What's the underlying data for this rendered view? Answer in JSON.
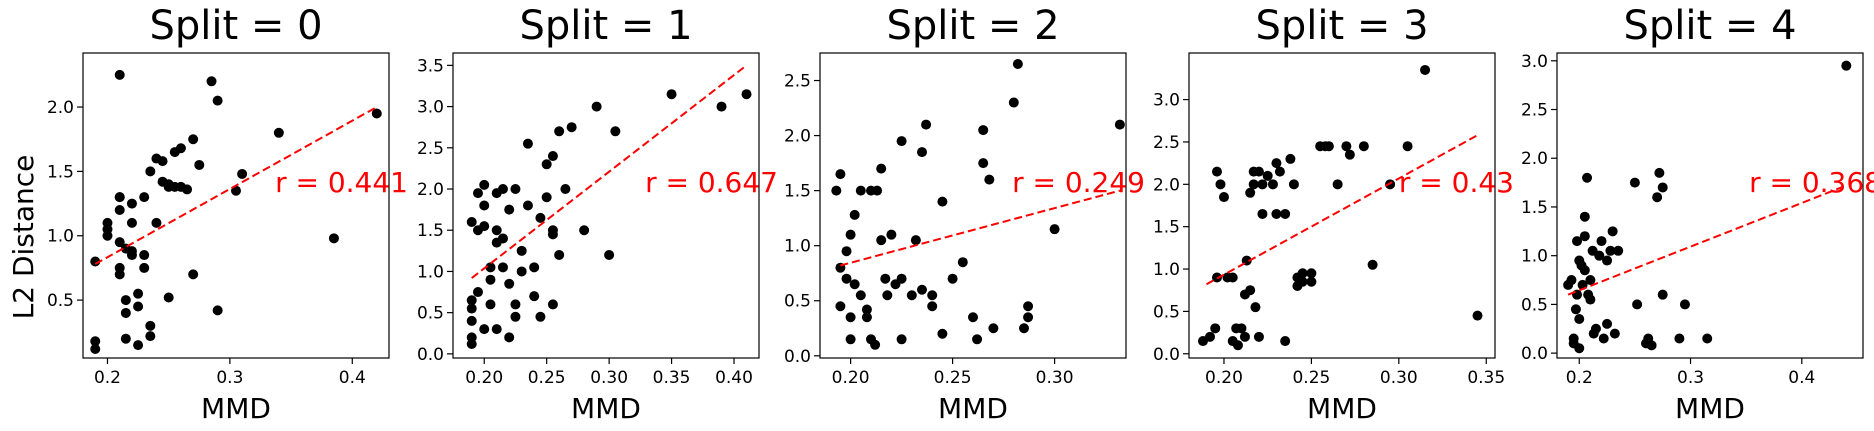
{
  "figure": {
    "ylabel": "L2 Distance",
    "xlabel": "MMD",
    "series_color": "#000000",
    "fit_color": "#ff0000"
  },
  "chart_data": [
    {
      "type": "scatter",
      "title": "Split = 0",
      "xlabel": "MMD",
      "ylabel": "L2 Distance",
      "annotation": "r = 0.441",
      "xlim": [
        0.18,
        0.43
      ],
      "ylim": [
        0.05,
        2.42
      ],
      "xticks": [
        0.2,
        0.3,
        0.4
      ],
      "xtick_labels": [
        "0.2",
        "0.3",
        "0.4"
      ],
      "yticks": [
        0.5,
        1.0,
        1.5,
        2.0
      ],
      "ytick_labels": [
        "0.5",
        "1.0",
        "1.5",
        "2.0"
      ],
      "fit": [
        [
          0.19,
          0.78
        ],
        [
          0.42,
          2.0
        ]
      ],
      "points": [
        [
          0.19,
          0.18
        ],
        [
          0.19,
          0.12
        ],
        [
          0.19,
          0.8
        ],
        [
          0.2,
          1.05
        ],
        [
          0.2,
          1.0
        ],
        [
          0.2,
          1.1
        ],
        [
          0.21,
          1.3
        ],
        [
          0.21,
          0.7
        ],
        [
          0.21,
          0.75
        ],
        [
          0.21,
          0.95
        ],
        [
          0.21,
          2.25
        ],
        [
          0.21,
          1.3
        ],
        [
          0.21,
          1.2
        ],
        [
          0.215,
          0.5
        ],
        [
          0.215,
          0.4
        ],
        [
          0.215,
          0.9
        ],
        [
          0.215,
          0.2
        ],
        [
          0.22,
          0.85
        ],
        [
          0.22,
          1.25
        ],
        [
          0.22,
          1.1
        ],
        [
          0.22,
          0.88
        ],
        [
          0.225,
          0.45
        ],
        [
          0.225,
          0.15
        ],
        [
          0.225,
          0.55
        ],
        [
          0.23,
          0.75
        ],
        [
          0.23,
          1.3
        ],
        [
          0.23,
          0.85
        ],
        [
          0.235,
          0.3
        ],
        [
          0.235,
          0.22
        ],
        [
          0.235,
          1.5
        ],
        [
          0.24,
          1.1
        ],
        [
          0.24,
          1.6
        ],
        [
          0.245,
          1.42
        ],
        [
          0.245,
          1.58
        ],
        [
          0.25,
          0.52
        ],
        [
          0.25,
          1.38
        ],
        [
          0.25,
          1.4
        ],
        [
          0.255,
          1.38
        ],
        [
          0.255,
          1.65
        ],
        [
          0.26,
          1.68
        ],
        [
          0.26,
          1.38
        ],
        [
          0.265,
          1.36
        ],
        [
          0.27,
          0.7
        ],
        [
          0.27,
          1.75
        ],
        [
          0.275,
          1.55
        ],
        [
          0.285,
          2.2
        ],
        [
          0.29,
          2.05
        ],
        [
          0.29,
          0.42
        ],
        [
          0.305,
          1.35
        ],
        [
          0.31,
          1.48
        ],
        [
          0.34,
          1.8
        ],
        [
          0.385,
          0.98
        ],
        [
          0.42,
          1.95
        ]
      ]
    },
    {
      "type": "scatter",
      "title": "Split = 1",
      "xlabel": "MMD",
      "annotation": "r = 0.647",
      "xlim": [
        0.175,
        0.42
      ],
      "ylim": [
        -0.05,
        3.65
      ],
      "xticks": [
        0.2,
        0.25,
        0.3,
        0.35,
        0.4
      ],
      "xtick_labels": [
        "0.20",
        "0.25",
        "0.30",
        "0.35",
        "0.40"
      ],
      "yticks": [
        0.0,
        0.5,
        1.0,
        1.5,
        2.0,
        2.5,
        3.0,
        3.5
      ],
      "ytick_labels": [
        "0.0",
        "0.5",
        "1.0",
        "1.5",
        "2.0",
        "2.5",
        "3.0",
        "3.5"
      ],
      "fit": [
        [
          0.19,
          0.92
        ],
        [
          0.41,
          3.5
        ]
      ],
      "points": [
        [
          0.19,
          0.12
        ],
        [
          0.19,
          0.2
        ],
        [
          0.19,
          0.4
        ],
        [
          0.19,
          0.55
        ],
        [
          0.19,
          0.65
        ],
        [
          0.19,
          1.6
        ],
        [
          0.195,
          1.95
        ],
        [
          0.195,
          1.5
        ],
        [
          0.195,
          0.75
        ],
        [
          0.2,
          2.05
        ],
        [
          0.2,
          1.8
        ],
        [
          0.2,
          1.55
        ],
        [
          0.2,
          0.3
        ],
        [
          0.205,
          1.05
        ],
        [
          0.205,
          0.9
        ],
        [
          0.205,
          0.6
        ],
        [
          0.21,
          1.95
        ],
        [
          0.21,
          1.5
        ],
        [
          0.21,
          1.35
        ],
        [
          0.21,
          0.3
        ],
        [
          0.215,
          1.05
        ],
        [
          0.215,
          1.4
        ],
        [
          0.215,
          2.0
        ],
        [
          0.22,
          1.75
        ],
        [
          0.22,
          0.85
        ],
        [
          0.22,
          0.2
        ],
        [
          0.225,
          2.0
        ],
        [
          0.225,
          0.6
        ],
        [
          0.225,
          0.45
        ],
        [
          0.23,
          1.25
        ],
        [
          0.23,
          1.0
        ],
        [
          0.235,
          2.55
        ],
        [
          0.235,
          1.8
        ],
        [
          0.24,
          1.05
        ],
        [
          0.24,
          0.7
        ],
        [
          0.245,
          1.65
        ],
        [
          0.245,
          0.45
        ],
        [
          0.25,
          2.3
        ],
        [
          0.25,
          1.9
        ],
        [
          0.255,
          1.45
        ],
        [
          0.255,
          1.5
        ],
        [
          0.255,
          0.6
        ],
        [
          0.255,
          2.4
        ],
        [
          0.26,
          2.7
        ],
        [
          0.26,
          1.2
        ],
        [
          0.265,
          2.0
        ],
        [
          0.27,
          2.75
        ],
        [
          0.28,
          1.5
        ],
        [
          0.29,
          3.0
        ],
        [
          0.3,
          1.2
        ],
        [
          0.305,
          2.7
        ],
        [
          0.35,
          3.15
        ],
        [
          0.39,
          3.0
        ],
        [
          0.41,
          3.15
        ]
      ]
    },
    {
      "type": "scatter",
      "title": "Split = 2",
      "xlabel": "MMD",
      "annotation": "r = 0.249",
      "xlim": [
        0.185,
        0.335
      ],
      "ylim": [
        -0.02,
        2.75
      ],
      "xticks": [
        0.2,
        0.25,
        0.3
      ],
      "xtick_labels": [
        "0.20",
        "0.25",
        "0.30"
      ],
      "yticks": [
        0.0,
        0.5,
        1.0,
        1.5,
        2.0,
        2.5
      ],
      "ytick_labels": [
        "0.0",
        "0.5",
        "1.0",
        "1.5",
        "2.0",
        "2.5"
      ],
      "fit": [
        [
          0.195,
          0.82
        ],
        [
          0.332,
          1.5
        ]
      ],
      "points": [
        [
          0.193,
          1.5
        ],
        [
          0.195,
          1.65
        ],
        [
          0.195,
          0.8
        ],
        [
          0.195,
          0.45
        ],
        [
          0.198,
          0.95
        ],
        [
          0.198,
          0.7
        ],
        [
          0.2,
          1.1
        ],
        [
          0.2,
          0.35
        ],
        [
          0.2,
          0.15
        ],
        [
          0.202,
          1.28
        ],
        [
          0.202,
          0.65
        ],
        [
          0.205,
          1.5
        ],
        [
          0.205,
          0.55
        ],
        [
          0.208,
          0.42
        ],
        [
          0.208,
          0.35
        ],
        [
          0.21,
          1.5
        ],
        [
          0.21,
          0.15
        ],
        [
          0.212,
          0.1
        ],
        [
          0.213,
          1.5
        ],
        [
          0.215,
          1.7
        ],
        [
          0.215,
          1.05
        ],
        [
          0.217,
          0.7
        ],
        [
          0.218,
          0.55
        ],
        [
          0.22,
          1.1
        ],
        [
          0.222,
          0.65
        ],
        [
          0.225,
          1.95
        ],
        [
          0.225,
          0.7
        ],
        [
          0.225,
          0.15
        ],
        [
          0.23,
          0.55
        ],
        [
          0.232,
          1.05
        ],
        [
          0.235,
          1.85
        ],
        [
          0.235,
          0.6
        ],
        [
          0.237,
          2.1
        ],
        [
          0.24,
          0.45
        ],
        [
          0.24,
          0.55
        ],
        [
          0.245,
          1.4
        ],
        [
          0.245,
          0.2
        ],
        [
          0.25,
          0.7
        ],
        [
          0.255,
          0.85
        ],
        [
          0.26,
          0.35
        ],
        [
          0.262,
          0.15
        ],
        [
          0.265,
          2.05
        ],
        [
          0.265,
          1.75
        ],
        [
          0.268,
          1.6
        ],
        [
          0.27,
          0.25
        ],
        [
          0.28,
          2.3
        ],
        [
          0.282,
          2.65
        ],
        [
          0.285,
          0.25
        ],
        [
          0.287,
          0.45
        ],
        [
          0.287,
          0.35
        ],
        [
          0.3,
          1.15
        ],
        [
          0.332,
          2.1
        ]
      ]
    },
    {
      "type": "scatter",
      "title": "Split = 3",
      "xlabel": "MMD",
      "annotation": "r = 0.43",
      "xlim": [
        0.18,
        0.355
      ],
      "ylim": [
        -0.05,
        3.55
      ],
      "xticks": [
        0.2,
        0.25,
        0.3,
        0.35
      ],
      "xtick_labels": [
        "0.20",
        "0.25",
        "0.30",
        "0.35"
      ],
      "yticks": [
        0.0,
        0.5,
        1.0,
        1.5,
        2.0,
        2.5,
        3.0
      ],
      "ytick_labels": [
        "0.0",
        "0.5",
        "1.0",
        "1.5",
        "2.0",
        "2.5",
        "3.0"
      ],
      "fit": [
        [
          0.19,
          0.82
        ],
        [
          0.345,
          2.58
        ]
      ],
      "points": [
        [
          0.188,
          0.15
        ],
        [
          0.192,
          0.2
        ],
        [
          0.195,
          0.3
        ],
        [
          0.196,
          0.9
        ],
        [
          0.196,
          2.15
        ],
        [
          0.198,
          2.0
        ],
        [
          0.2,
          1.85
        ],
        [
          0.202,
          0.9
        ],
        [
          0.205,
          0.15
        ],
        [
          0.205,
          0.9
        ],
        [
          0.207,
          0.3
        ],
        [
          0.208,
          0.1
        ],
        [
          0.21,
          0.3
        ],
        [
          0.212,
          0.7
        ],
        [
          0.212,
          0.2
        ],
        [
          0.213,
          1.1
        ],
        [
          0.215,
          1.9
        ],
        [
          0.215,
          0.75
        ],
        [
          0.217,
          2.0
        ],
        [
          0.217,
          2.15
        ],
        [
          0.218,
          0.55
        ],
        [
          0.22,
          2.15
        ],
        [
          0.22,
          0.2
        ],
        [
          0.222,
          2.0
        ],
        [
          0.222,
          1.65
        ],
        [
          0.225,
          2.1
        ],
        [
          0.228,
          2.0
        ],
        [
          0.23,
          2.25
        ],
        [
          0.23,
          1.65
        ],
        [
          0.232,
          2.15
        ],
        [
          0.235,
          1.65
        ],
        [
          0.235,
          0.15
        ],
        [
          0.238,
          2.3
        ],
        [
          0.24,
          2.0
        ],
        [
          0.242,
          0.9
        ],
        [
          0.242,
          0.8
        ],
        [
          0.245,
          0.85
        ],
        [
          0.245,
          0.95
        ],
        [
          0.25,
          0.85
        ],
        [
          0.25,
          0.95
        ],
        [
          0.255,
          2.45
        ],
        [
          0.258,
          2.45
        ],
        [
          0.26,
          2.45
        ],
        [
          0.265,
          2.0
        ],
        [
          0.27,
          2.45
        ],
        [
          0.272,
          2.35
        ],
        [
          0.28,
          2.45
        ],
        [
          0.285,
          1.05
        ],
        [
          0.295,
          2.0
        ],
        [
          0.305,
          2.45
        ],
        [
          0.315,
          3.35
        ],
        [
          0.345,
          0.45
        ]
      ]
    },
    {
      "type": "scatter",
      "title": "Split = 4",
      "xlabel": "MMD",
      "annotation": "r = 0.368",
      "xlim": [
        0.18,
        0.455
      ],
      "ylim": [
        -0.05,
        3.08
      ],
      "xticks": [
        0.2,
        0.3,
        0.4
      ],
      "xtick_labels": [
        "0.2",
        "0.3",
        "0.4"
      ],
      "yticks": [
        0.0,
        0.5,
        1.0,
        1.5,
        2.0,
        2.5,
        3.0
      ],
      "ytick_labels": [
        "0.0",
        "0.5",
        "1.0",
        "1.5",
        "2.0",
        "2.5",
        "3.0"
      ],
      "fit": [
        [
          0.19,
          0.6
        ],
        [
          0.44,
          1.72
        ]
      ],
      "points": [
        [
          0.19,
          0.7
        ],
        [
          0.193,
          0.75
        ],
        [
          0.195,
          0.15
        ],
        [
          0.195,
          0.1
        ],
        [
          0.197,
          0.45
        ],
        [
          0.198,
          1.15
        ],
        [
          0.198,
          0.6
        ],
        [
          0.2,
          0.95
        ],
        [
          0.2,
          0.35
        ],
        [
          0.2,
          0.05
        ],
        [
          0.202,
          0.9
        ],
        [
          0.203,
          0.7
        ],
        [
          0.205,
          1.2
        ],
        [
          0.205,
          1.4
        ],
        [
          0.205,
          0.85
        ],
        [
          0.207,
          1.8
        ],
        [
          0.208,
          0.6
        ],
        [
          0.21,
          0.55
        ],
        [
          0.21,
          0.75
        ],
        [
          0.212,
          1.05
        ],
        [
          0.213,
          0.2
        ],
        [
          0.215,
          0.25
        ],
        [
          0.218,
          1.0
        ],
        [
          0.22,
          1.15
        ],
        [
          0.222,
          0.15
        ],
        [
          0.225,
          0.3
        ],
        [
          0.225,
          0.95
        ],
        [
          0.228,
          1.05
        ],
        [
          0.23,
          1.25
        ],
        [
          0.232,
          0.2
        ],
        [
          0.235,
          1.05
        ],
        [
          0.25,
          1.75
        ],
        [
          0.252,
          0.5
        ],
        [
          0.26,
          0.1
        ],
        [
          0.262,
          0.15
        ],
        [
          0.265,
          0.08
        ],
        [
          0.27,
          1.6
        ],
        [
          0.272,
          1.85
        ],
        [
          0.275,
          1.7
        ],
        [
          0.275,
          0.6
        ],
        [
          0.29,
          0.15
        ],
        [
          0.295,
          0.5
        ],
        [
          0.315,
          0.15
        ],
        [
          0.44,
          2.95
        ]
      ]
    }
  ]
}
